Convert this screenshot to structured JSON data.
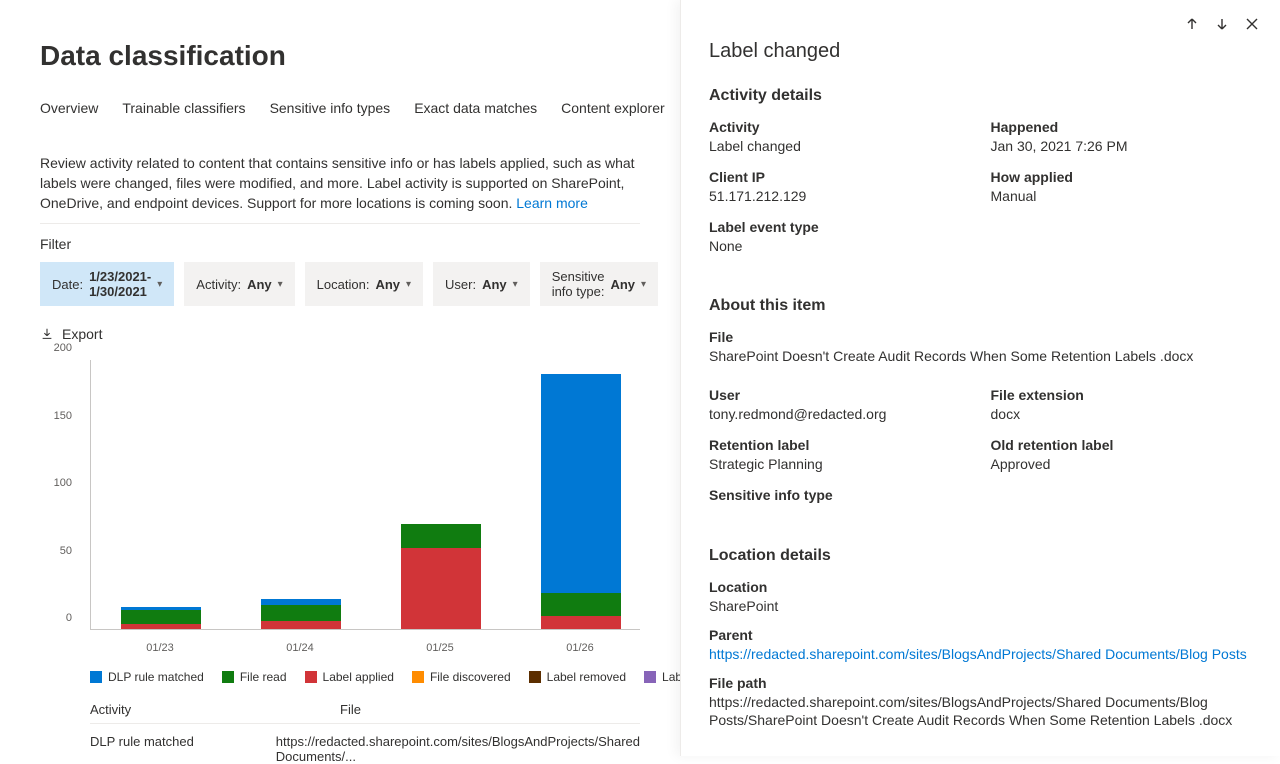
{
  "page": {
    "title": "Data classification",
    "description": "Review activity related to content that contains sensitive info or has labels applied, such as what labels were changed, files were modified, and more. Label activity is supported on SharePoint, OneDrive, and endpoint devices. Support for more locations is coming soon.",
    "learnMore": "Learn more"
  },
  "tabs": [
    "Overview",
    "Trainable classifiers",
    "Sensitive info types",
    "Exact data matches",
    "Content explorer"
  ],
  "filter": {
    "label": "Filter",
    "pills": [
      {
        "label": "Date:",
        "value": "1/23/2021-1/30/2021",
        "active": true
      },
      {
        "label": "Activity:",
        "value": "Any",
        "active": false
      },
      {
        "label": "Location:",
        "value": "Any",
        "active": false
      },
      {
        "label": "User:",
        "value": "Any",
        "active": false
      },
      {
        "label": "Sensitive info type:",
        "value": "Any",
        "active": false
      }
    ]
  },
  "export": "Export",
  "chart": {
    "ylim": [
      0,
      200
    ],
    "yticks": [
      0,
      50,
      100,
      150,
      200
    ],
    "categories": [
      "01/23",
      "01/24",
      "01/25",
      "01/26"
    ],
    "colors": {
      "DLP rule matched": "#0078d4",
      "File read": "#107c10",
      "Label applied": "#d13438",
      "File discovered": "#ff8c00",
      "Label removed": "#5c2e00",
      "Label changed": "#8764b8"
    },
    "series": [
      {
        "DLP rule matched": 2,
        "File read": 10,
        "Label applied": 4
      },
      {
        "DLP rule matched": 4,
        "File read": 12,
        "Label applied": 6
      },
      {
        "DLP rule matched": 0,
        "File read": 18,
        "Label applied": 60
      },
      {
        "DLP rule matched": 162,
        "File read": 17,
        "Label applied": 10
      }
    ],
    "legend": [
      "DLP rule matched",
      "File read",
      "Label applied",
      "File discovered",
      "Label removed",
      "Label changed"
    ],
    "stack_order": [
      "Label applied",
      "File read",
      "DLP rule matched"
    ]
  },
  "table": {
    "headers": [
      "Activity",
      "File"
    ],
    "rows": [
      [
        "DLP rule matched",
        "https://redacted.sharepoint.com/sites/BlogsAndProjects/Shared Documents/..."
      ]
    ]
  },
  "panel": {
    "title": "Label changed",
    "sections": {
      "activity": {
        "title": "Activity details",
        "fields": [
          {
            "label": "Activity",
            "value": "Label changed"
          },
          {
            "label": "Happened",
            "value": "Jan 30, 2021 7:26 PM"
          },
          {
            "label": "Client IP",
            "value": "51.171.212.129"
          },
          {
            "label": "How applied",
            "value": "Manual"
          },
          {
            "label": "Label event type",
            "value": "None",
            "span": 2
          }
        ]
      },
      "about": {
        "title": "About this item",
        "fileLabel": "File",
        "fileValue": "SharePoint Doesn't Create Audit Records When Some Retention Labels .docx",
        "fields": [
          {
            "label": "User",
            "value": "tony.redmond@redacted.org"
          },
          {
            "label": "File extension",
            "value": "docx"
          },
          {
            "label": "Retention label",
            "value": "Strategic Planning"
          },
          {
            "label": "Old retention label",
            "value": "Approved"
          },
          {
            "label": "Sensitive info type",
            "value": "",
            "span": 2
          }
        ]
      },
      "location": {
        "title": "Location details",
        "fields": [
          {
            "label": "Location",
            "value": "SharePoint"
          },
          {
            "label": "Parent",
            "value": "https://redacted.sharepoint.com/sites/BlogsAndProjects/Shared Documents/Blog Posts",
            "link": true
          },
          {
            "label": "File path",
            "value": "https://redacted.sharepoint.com/sites/BlogsAndProjects/Shared Documents/Blog Posts/SharePoint Doesn't Create Audit Records When Some Retention Labels .docx"
          }
        ]
      }
    }
  }
}
